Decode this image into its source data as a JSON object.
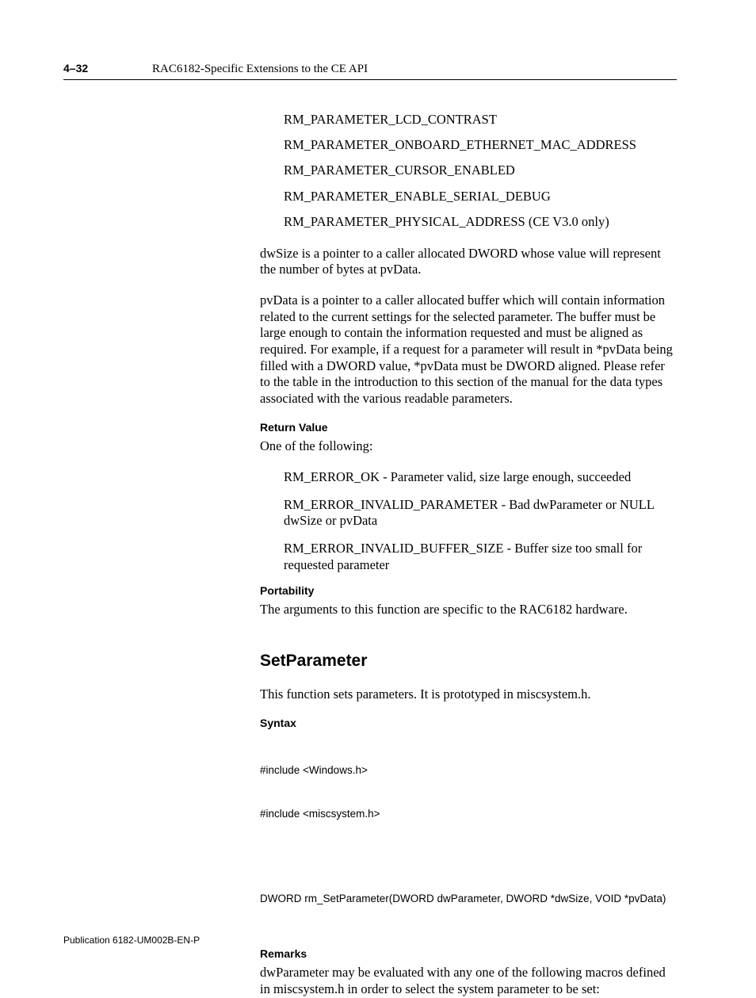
{
  "header": {
    "page_number": "4–32",
    "title": "RAC6182-Specific Extensions to the CE API"
  },
  "params": {
    "p1": "RM_PARAMETER_LCD_CONTRAST",
    "p2": "RM_PARAMETER_ONBOARD_ETHERNET_MAC_ADDRESS",
    "p3": "RM_PARAMETER_CURSOR_ENABLED",
    "p4": "RM_PARAMETER_ENABLE_SERIAL_DEBUG",
    "p5": "RM_PARAMETER_PHYSICAL_ADDRESS (CE V3.0 only)"
  },
  "para_dwsize": "dwSize is a pointer to a caller allocated DWORD whose value will represent the number of bytes at pvData.",
  "para_pvdata": "pvData is a pointer to a caller allocated buffer which will contain information related to the current settings for the selected parameter.  The buffer must be large enough to contain the information requested and must be aligned as required.  For example, if a request for a parameter will result in *pvData being filled with a DWORD value, *pvData must be DWORD aligned.  Please refer to the table in the introduction to this section of the manual for the data types associated with the various readable parameters.",
  "return_value": {
    "heading": "Return Value",
    "intro": "One of the following:",
    "r1": "RM_ERROR_OK - Parameter valid, size large enough, succeeded",
    "r2": "RM_ERROR_INVALID_PARAMETER - Bad dwParameter or NULL dwSize or pvData",
    "r3": "RM_ERROR_INVALID_BUFFER_SIZE - Buffer size too small for requested parameter"
  },
  "portability": {
    "heading": "Portability",
    "text": "The arguments to this function are specific to the RAC6182 hardware."
  },
  "section": {
    "title": "SetParameter",
    "intro": "This function sets parameters.  It is prototyped in miscsystem.h."
  },
  "syntax": {
    "heading": "Syntax",
    "inc1": "#include <Windows.h>",
    "inc2": "#include <miscsystem.h>",
    "proto": "DWORD rm_SetParameter(DWORD dwParameter, DWORD *dwSize, VOID *pvData)"
  },
  "remarks": {
    "heading": "Remarks",
    "text": "dwParameter may be evaluated with any one of the following macros defined in miscsystem.h in order to select the system parameter to be set:"
  },
  "footer": "Publication 6182-UM002B-EN-P"
}
